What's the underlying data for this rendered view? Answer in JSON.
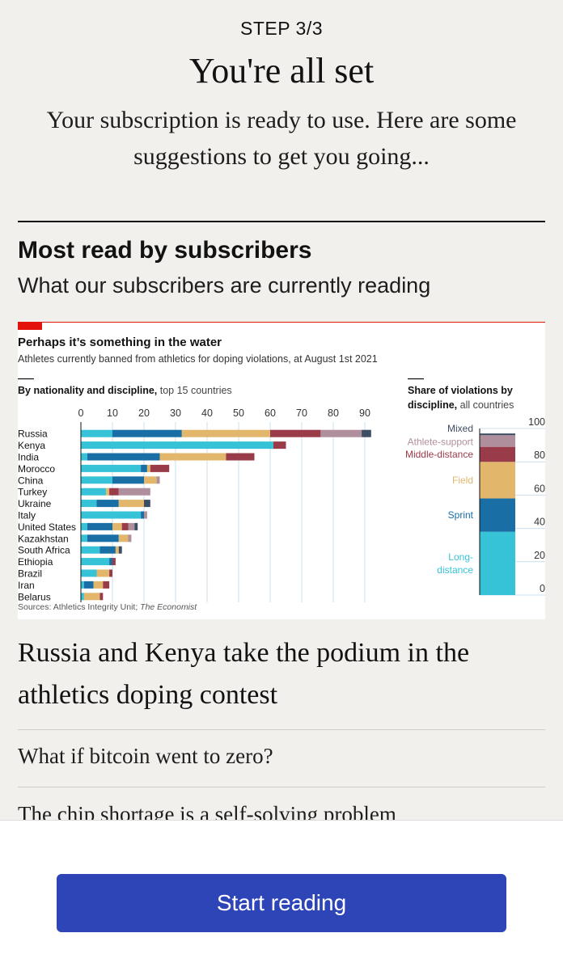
{
  "onboarding": {
    "step": "STEP 3/3",
    "title": "You're all set",
    "subtitle": "Your subscription is ready to use. Here are some suggestions to get you going..."
  },
  "section": {
    "heading": "Most read by subscribers",
    "subheading": "What our subscribers are currently reading"
  },
  "articles": [
    {
      "title": "Russia and Kenya take the podium in the athletics doping contest"
    },
    {
      "title": "What if bitcoin went to zero?"
    },
    {
      "title": "The chip shortage is a self-solving problem"
    }
  ],
  "cta": {
    "label": "Start reading"
  },
  "colors": {
    "accent_red": "#e3120b",
    "button_blue": "#2e45b8",
    "long_distance": "#36c3d8",
    "sprint": "#1a6ea6",
    "field": "#e2b66b",
    "middle_distance": "#9a3b49",
    "athlete_support": "#b08f9d",
    "mixed": "#3d4d62"
  },
  "chart_data": [
    {
      "type": "bar",
      "orientation": "horizontal",
      "stacked": true,
      "title": "Perhaps it’s something in the water",
      "subtitle": "Athletes currently banned from athletics for doping violations, at August 1st 2021",
      "panel_title": "By nationality and discipline,",
      "panel_subtitle": "top 15 countries",
      "source_label": "Sources: Athletics Integrity Unit; ",
      "source_italic": "The Economist",
      "xlim": [
        0,
        90
      ],
      "xticks": [
        "0",
        "10",
        "20",
        "30",
        "40",
        "50",
        "60",
        "70",
        "80",
        "90"
      ],
      "grid": true,
      "categories": [
        "Russia",
        "Kenya",
        "India",
        "Morocco",
        "China",
        "Turkey",
        "Ukraine",
        "Italy",
        "United States",
        "Kazakhstan",
        "South Africa",
        "Ethiopia",
        "Brazil",
        "Iran",
        "Belarus"
      ],
      "series": [
        {
          "name": "Long-distance",
          "values": [
            10,
            61,
            2,
            19,
            10,
            8,
            5,
            19,
            2,
            2,
            6,
            9,
            5,
            1,
            1
          ]
        },
        {
          "name": "Sprint",
          "values": [
            22,
            0,
            23,
            2,
            10,
            0,
            7,
            1,
            8,
            10,
            5,
            1,
            0,
            3,
            0
          ]
        },
        {
          "name": "Field",
          "values": [
            28,
            0,
            21,
            1,
            4,
            1,
            8,
            0,
            3,
            3,
            1,
            0,
            4,
            3,
            5
          ]
        },
        {
          "name": "Middle-distance",
          "values": [
            16,
            4,
            9,
            6,
            0,
            3,
            0,
            0,
            2,
            0,
            0,
            1,
            1,
            2,
            1
          ]
        },
        {
          "name": "Athlete-support",
          "values": [
            13,
            0,
            0,
            0,
            1,
            10,
            0,
            1,
            2,
            1,
            0,
            0,
            0,
            0,
            0
          ]
        },
        {
          "name": "Mixed",
          "values": [
            3,
            0,
            0,
            0,
            0,
            0,
            2,
            0,
            1,
            0,
            1,
            0,
            0,
            0,
            0
          ]
        }
      ]
    },
    {
      "type": "bar",
      "stacked": true,
      "panel_title": "Share of violations by discipline,",
      "panel_subtitle": "all countries",
      "ylim": [
        0,
        100
      ],
      "yticks": [
        "0",
        "20",
        "40",
        "60",
        "80",
        "100"
      ],
      "series": [
        {
          "name": "Long-distance",
          "label": [
            "Long-",
            "distance"
          ],
          "values": [
            38
          ]
        },
        {
          "name": "Sprint",
          "label": [
            "Sprint"
          ],
          "values": [
            20
          ]
        },
        {
          "name": "Field",
          "label": [
            "Field"
          ],
          "values": [
            22
          ]
        },
        {
          "name": "Middle-distance",
          "label": [
            "Middle-distance"
          ],
          "values": [
            9
          ]
        },
        {
          "name": "Athlete-support",
          "label": [
            "Athlete-support"
          ],
          "values": [
            7
          ]
        },
        {
          "name": "Mixed",
          "label": [
            "Mixed"
          ],
          "values": [
            1
          ]
        }
      ]
    }
  ]
}
